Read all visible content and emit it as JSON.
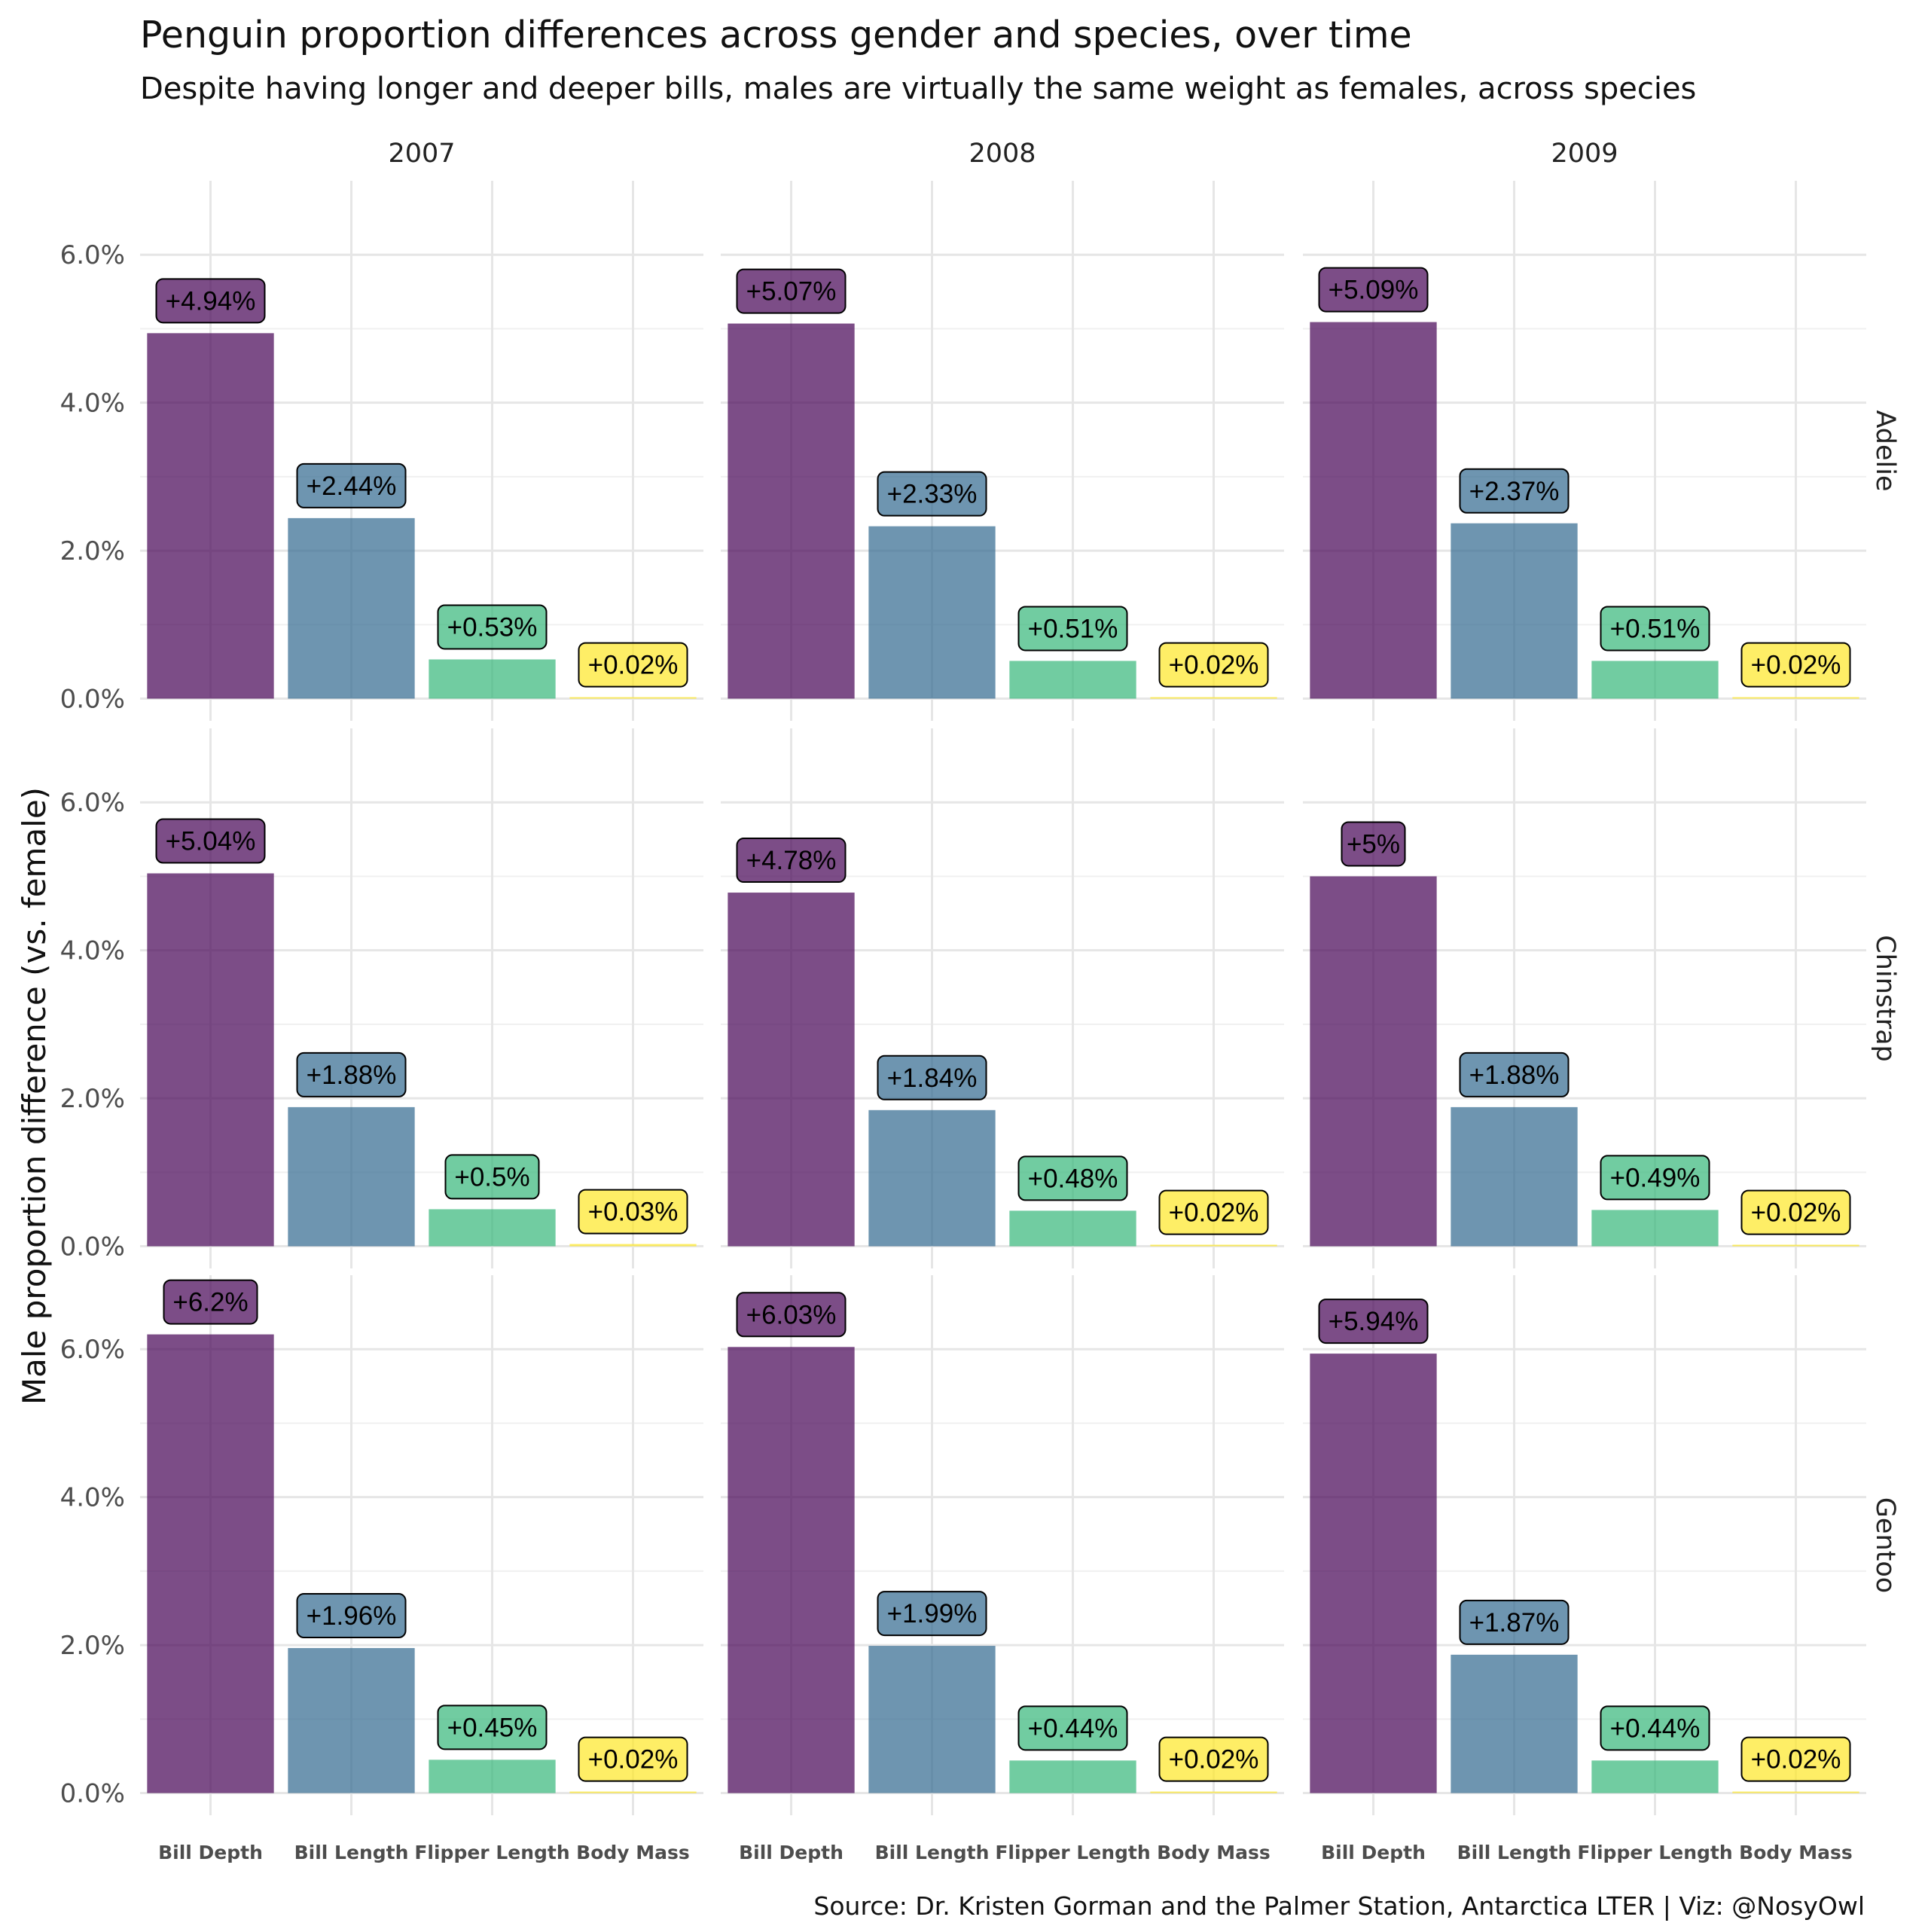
{
  "chart_data": {
    "type": "bar",
    "title": "Penguin proportion differences across gender and species, over time",
    "subtitle": "Despite having longer and deeper bills, males are virtually the same weight as females, across species",
    "ylabel": "Male proportion difference (vs. female)",
    "caption": "Source: Dr. Kristen Gorman and the Palmer Station, Antarctica LTER | Viz: @NosyOwl",
    "ylim": [
      -0.3,
      7.0
    ],
    "yticks": [
      0,
      2,
      4,
      6
    ],
    "ytick_labels": [
      "0.0%",
      "2.0%",
      "4.0%",
      "6.0%"
    ],
    "grid": true,
    "legend": "none",
    "categories": [
      "Bill Depth",
      "Bill Length",
      "Flipper Length",
      "Body Mass"
    ],
    "colors": [
      "#440154",
      "#31688E",
      "#35B779",
      "#FDE725"
    ],
    "years": [
      "2007",
      "2008",
      "2009"
    ],
    "species": [
      "Adelie",
      "Chinstrap",
      "Gentoo"
    ],
    "panels": [
      {
        "year": "2007",
        "species": "Adelie",
        "values": [
          4.94,
          2.44,
          0.53,
          0.02
        ],
        "labels": [
          "+4.94%",
          "+2.44%",
          "+0.53%",
          "+0.02%"
        ]
      },
      {
        "year": "2008",
        "species": "Adelie",
        "values": [
          5.07,
          2.33,
          0.51,
          0.02
        ],
        "labels": [
          "+5.07%",
          "+2.33%",
          "+0.51%",
          "+0.02%"
        ]
      },
      {
        "year": "2009",
        "species": "Adelie",
        "values": [
          5.09,
          2.37,
          0.51,
          0.02
        ],
        "labels": [
          "+5.09%",
          "+2.37%",
          "+0.51%",
          "+0.02%"
        ]
      },
      {
        "year": "2007",
        "species": "Chinstrap",
        "values": [
          5.04,
          1.88,
          0.5,
          0.03
        ],
        "labels": [
          "+5.04%",
          "+1.88%",
          "+0.5%",
          "+0.03%"
        ]
      },
      {
        "year": "2008",
        "species": "Chinstrap",
        "values": [
          4.78,
          1.84,
          0.48,
          0.02
        ],
        "labels": [
          "+4.78%",
          "+1.84%",
          "+0.48%",
          "+0.02%"
        ]
      },
      {
        "year": "2009",
        "species": "Chinstrap",
        "values": [
          5.0,
          1.88,
          0.49,
          0.02
        ],
        "labels": [
          "+5%",
          "+1.88%",
          "+0.49%",
          "+0.02%"
        ]
      },
      {
        "year": "2007",
        "species": "Gentoo",
        "values": [
          6.2,
          1.96,
          0.45,
          0.02
        ],
        "labels": [
          "+6.2%",
          "+1.96%",
          "+0.45%",
          "+0.02%"
        ]
      },
      {
        "year": "2008",
        "species": "Gentoo",
        "values": [
          6.03,
          1.99,
          0.44,
          0.02
        ],
        "labels": [
          "+6.03%",
          "+1.99%",
          "+0.44%",
          "+0.02%"
        ]
      },
      {
        "year": "2009",
        "species": "Gentoo",
        "values": [
          5.94,
          1.87,
          0.44,
          0.02
        ],
        "labels": [
          "+5.94%",
          "+1.87%",
          "+0.44%",
          "+0.02%"
        ]
      }
    ]
  }
}
